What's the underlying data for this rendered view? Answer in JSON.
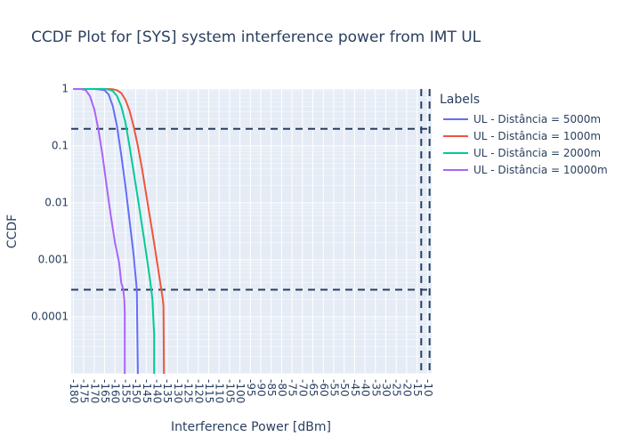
{
  "chart_data": {
    "type": "line",
    "title": "CCDF Plot for [SYS] system interference power from IMT UL",
    "xlabel": "Interference Power [dBm]",
    "ylabel": "CCDF",
    "xscale": "linear",
    "xreversed": true,
    "x_ticks": [
      -180,
      -175,
      -170,
      -165,
      -160,
      -155,
      -150,
      -145,
      -140,
      -135,
      -130,
      -125,
      -120,
      -115,
      -110,
      -105,
      -100,
      -95,
      -90,
      -85,
      -80,
      -75,
      -70,
      -65,
      -60,
      -55,
      -50,
      -45,
      -40,
      -35,
      -30,
      -25,
      -20,
      -15,
      -10
    ],
    "x_tick_labels": [
      "-180",
      "-175",
      "-170",
      "-165",
      "-160",
      "-155",
      "-150",
      "-145",
      "-140",
      "-135",
      "-130",
      "-125",
      "-120",
      "-115",
      "-110",
      "-105",
      "-100",
      "-95",
      "-90",
      "-85",
      "-80",
      "-75",
      "-70",
      "-65",
      "-60",
      "-55",
      "-50",
      "-45",
      "-40",
      "-35",
      "-30",
      "-25",
      "-20",
      "-15",
      "-10"
    ],
    "xlim": [
      -181,
      -8
    ],
    "yscale": "log",
    "ylim": [
      1e-05,
      1
    ],
    "y_ticks": [
      1,
      0.1,
      0.01,
      0.001,
      0.0001
    ],
    "y_tick_labels": [
      "1",
      "0.1",
      "0.01",
      "0.001",
      "0.0001"
    ],
    "legend_title": "Labels",
    "legend_position": "right",
    "grid": true,
    "colors": {
      "background": "#e5ecf6",
      "grid": "#ffffff",
      "reference_lines": "#2a3f5f"
    },
    "hlines": [
      0.2,
      0.0003
    ],
    "vlines": [
      -13,
      -9
    ],
    "series": [
      {
        "name": "UL - Distância = 5000m",
        "color": "#636efa",
        "x": [
          -180,
          -170,
          -167,
          -165,
          -163,
          -161,
          -159,
          -157,
          -155,
          -153,
          -151,
          -149.8,
          -149.5,
          -149
        ],
        "y": [
          1,
          1,
          0.98,
          0.95,
          0.8,
          0.5,
          0.22,
          0.07,
          0.02,
          0.005,
          0.0012,
          0.0004,
          0.0003,
          1e-05
        ]
      },
      {
        "name": "UL - Distância = 1000m",
        "color": "#ef553b",
        "x": [
          -180,
          -163,
          -161,
          -159,
          -157,
          -155,
          -153,
          -151,
          -149,
          -147,
          -145,
          -143,
          -141,
          -139,
          -137,
          -136.7,
          -136.5
        ],
        "y": [
          1,
          1,
          0.99,
          0.95,
          0.85,
          0.65,
          0.42,
          0.22,
          0.1,
          0.04,
          0.014,
          0.005,
          0.0018,
          0.0006,
          0.0002,
          0.00015,
          1e-05
        ]
      },
      {
        "name": "UL - Distância = 2000m",
        "color": "#00cc96",
        "x": [
          -180,
          -165,
          -163,
          -161,
          -159,
          -157,
          -155,
          -153,
          -151,
          -149,
          -147,
          -145,
          -143,
          -142,
          -141.5,
          -141.2,
          -141.2
        ],
        "y": [
          1,
          1,
          0.98,
          0.92,
          0.75,
          0.5,
          0.26,
          0.1,
          0.035,
          0.012,
          0.004,
          0.0013,
          0.0004,
          0.0002,
          8e-05,
          5e-05,
          1e-05
        ]
      },
      {
        "name": "UL - Distância = 10000m",
        "color": "#ab63fa",
        "x": [
          -180,
          -176,
          -174,
          -172,
          -170,
          -168,
          -166,
          -164,
          -162,
          -160,
          -158,
          -157,
          -156,
          -155.5,
          -155.3,
          -155.3
        ],
        "y": [
          1,
          1,
          0.95,
          0.75,
          0.45,
          0.2,
          0.07,
          0.02,
          0.006,
          0.002,
          0.0009,
          0.0004,
          0.0003,
          0.0002,
          0.00012,
          1e-05
        ]
      }
    ]
  }
}
